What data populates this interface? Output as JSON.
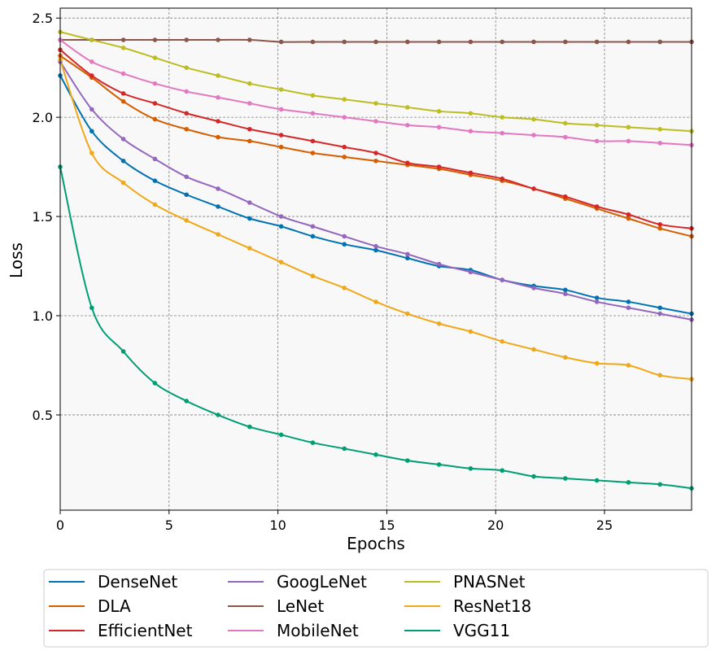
{
  "chart_data": {
    "type": "line",
    "title": "",
    "xlabel": "Epochs",
    "ylabel": "Loss",
    "xlim": [
      0,
      29
    ],
    "ylim": [
      0.02,
      2.55
    ],
    "xticks": [
      0,
      5,
      10,
      15,
      20,
      25
    ],
    "yticks": [
      0.5,
      1.0,
      1.5,
      2.0,
      2.5
    ],
    "xtick_labels": [
      "0",
      "5",
      "10",
      "15",
      "20",
      "25"
    ],
    "ytick_labels": [
      "0.5",
      "1.0",
      "1.5",
      "2.0",
      "2.5"
    ],
    "grid": true,
    "legend_position": "below plot, three rows of four columns",
    "x": [
      0,
      1.45,
      2.9,
      4.35,
      5.8,
      7.25,
      8.7,
      10.15,
      11.6,
      13.05,
      14.5,
      15.95,
      17.4,
      18.85,
      20.3,
      21.75,
      23.2,
      24.65,
      26.1,
      27.55,
      29
    ],
    "series": [
      {
        "name": "DenseNet",
        "color": "#0072b2",
        "values": [
          2.21,
          1.93,
          1.78,
          1.68,
          1.61,
          1.55,
          1.49,
          1.45,
          1.4,
          1.36,
          1.33,
          1.29,
          1.25,
          1.23,
          1.18,
          1.15,
          1.13,
          1.09,
          1.07,
          1.04,
          1.01
        ]
      },
      {
        "name": "DLA",
        "color": "#d55e00",
        "values": [
          2.31,
          2.2,
          2.08,
          1.99,
          1.94,
          1.9,
          1.88,
          1.85,
          1.82,
          1.8,
          1.78,
          1.76,
          1.74,
          1.71,
          1.68,
          1.64,
          1.59,
          1.54,
          1.49,
          1.44,
          1.4
        ]
      },
      {
        "name": "EfficientNet",
        "color": "#d62728",
        "values": [
          2.34,
          2.21,
          2.12,
          2.07,
          2.02,
          1.98,
          1.94,
          1.91,
          1.88,
          1.85,
          1.82,
          1.77,
          1.75,
          1.72,
          1.69,
          1.64,
          1.6,
          1.55,
          1.51,
          1.46,
          1.44
        ]
      },
      {
        "name": "GoogLeNet",
        "color": "#9467bd",
        "values": [
          2.28,
          2.04,
          1.89,
          1.79,
          1.7,
          1.64,
          1.57,
          1.5,
          1.45,
          1.4,
          1.35,
          1.31,
          1.26,
          1.22,
          1.18,
          1.14,
          1.11,
          1.07,
          1.04,
          1.01,
          0.98
        ]
      },
      {
        "name": "LeNet",
        "color": "#8c564b",
        "values": [
          2.39,
          2.39,
          2.39,
          2.39,
          2.39,
          2.39,
          2.39,
          2.38,
          2.38,
          2.38,
          2.38,
          2.38,
          2.38,
          2.38,
          2.38,
          2.38,
          2.38,
          2.38,
          2.38,
          2.38,
          2.38
        ]
      },
      {
        "name": "MobileNet",
        "color": "#e377c2",
        "values": [
          2.39,
          2.28,
          2.22,
          2.17,
          2.13,
          2.1,
          2.07,
          2.04,
          2.02,
          2.0,
          1.98,
          1.96,
          1.95,
          1.93,
          1.92,
          1.91,
          1.9,
          1.88,
          1.88,
          1.87,
          1.86
        ]
      },
      {
        "name": "PNASNet",
        "color": "#bcbd22",
        "values": [
          2.43,
          2.39,
          2.35,
          2.3,
          2.25,
          2.21,
          2.17,
          2.14,
          2.11,
          2.09,
          2.07,
          2.05,
          2.03,
          2.02,
          2.0,
          1.99,
          1.97,
          1.96,
          1.95,
          1.94,
          1.93
        ]
      },
      {
        "name": "ResNet18",
        "color": "#f0a818",
        "values": [
          2.29,
          1.82,
          1.67,
          1.56,
          1.48,
          1.41,
          1.34,
          1.27,
          1.2,
          1.14,
          1.07,
          1.01,
          0.96,
          0.92,
          0.87,
          0.83,
          0.79,
          0.76,
          0.75,
          0.7,
          0.68
        ]
      },
      {
        "name": "VGG11",
        "color": "#009e73",
        "values": [
          1.75,
          1.04,
          0.82,
          0.66,
          0.57,
          0.5,
          0.44,
          0.4,
          0.36,
          0.33,
          0.3,
          0.27,
          0.25,
          0.23,
          0.22,
          0.19,
          0.18,
          0.17,
          0.16,
          0.15,
          0.13
        ]
      }
    ]
  }
}
